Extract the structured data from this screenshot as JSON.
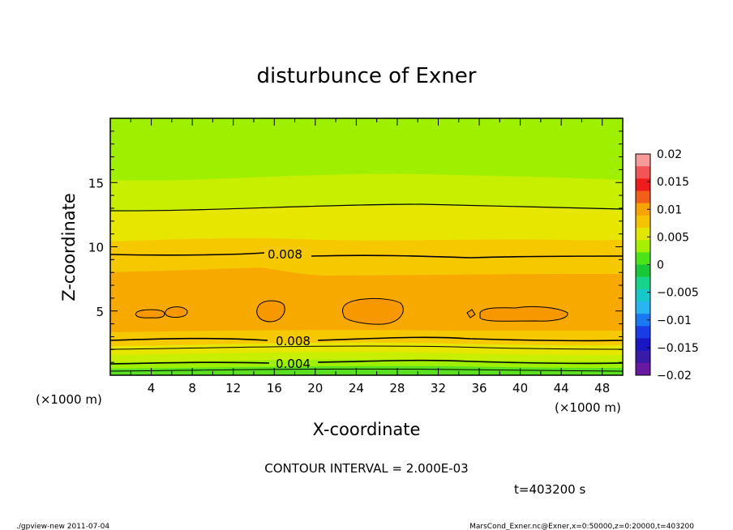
{
  "chart_data": {
    "type": "heatmap",
    "title": "disturbunce of Exner",
    "xlabel": "X-coordinate",
    "ylabel": "Z-coordinate",
    "xlim": [
      0,
      50
    ],
    "ylim": [
      0,
      20
    ],
    "x_ticks": [
      4,
      8,
      12,
      16,
      20,
      24,
      28,
      32,
      36,
      40,
      44,
      48
    ],
    "y_ticks": [
      5,
      10,
      15
    ],
    "x_unit": "(×1000 m)",
    "y_unit": "(×1000 m)",
    "colorbar": {
      "range": [
        -0.02,
        0.02
      ],
      "tick_labels": [
        "0.02",
        "0.015",
        "0.01",
        "0.005",
        "0",
        "−0.005",
        "−0.01",
        "−0.015",
        "−0.02"
      ],
      "colors": [
        "#f79a9a",
        "#f25555",
        "#ee1c1c",
        "#f25f1a",
        "#f7a300",
        "#f5c400",
        "#e3e600",
        "#a5f000",
        "#4ce31a",
        "#18c838",
        "#18d48a",
        "#18c8c8",
        "#2ab4f0",
        "#1a78f0",
        "#1a3ce6",
        "#1a16c4",
        "#3a1aa8",
        "#6a1aa0"
      ]
    },
    "contour_interval": "CONTOUR INTERVAL = 2.000E-03",
    "contour_labels": [
      {
        "text": "0.008",
        "x": 15.8,
        "z": 9.3
      },
      {
        "text": "0.008",
        "x": 16.8,
        "z": 2.7
      },
      {
        "text": "0.004",
        "x": 16.8,
        "z": 1.0
      }
    ],
    "time_label": "t=403200 s",
    "footer_left": "./gpview-new  2011-07-04",
    "footer_right": "MarsCond_Exner.nc@Exner,x=0:50000,z=0:20000,t=403200"
  }
}
